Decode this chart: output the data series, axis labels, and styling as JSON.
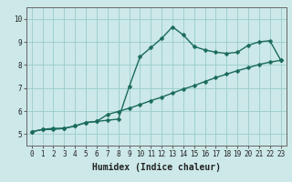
{
  "title": "",
  "xlabel": "Humidex (Indice chaleur)",
  "ylabel": "",
  "bg_color": "#cce8e8",
  "grid_color": "#99cccc",
  "line_color": "#1a6b5a",
  "xlim": [
    -0.5,
    23.5
  ],
  "ylim": [
    4.5,
    10.5
  ],
  "xticks": [
    0,
    1,
    2,
    3,
    4,
    5,
    6,
    7,
    8,
    9,
    10,
    11,
    12,
    13,
    14,
    15,
    16,
    17,
    18,
    19,
    20,
    21,
    22,
    23
  ],
  "yticks": [
    5,
    6,
    7,
    8,
    9,
    10
  ],
  "series1_x": [
    0,
    1,
    2,
    3,
    4,
    5,
    6,
    7,
    8,
    9,
    10,
    11,
    12,
    13,
    14,
    15,
    16,
    17,
    18,
    19,
    20,
    21,
    22,
    23
  ],
  "series1_y": [
    5.1,
    5.2,
    5.2,
    5.25,
    5.35,
    5.5,
    5.55,
    5.6,
    5.65,
    7.05,
    8.35,
    8.75,
    9.15,
    9.65,
    9.3,
    8.8,
    8.65,
    8.55,
    8.5,
    8.55,
    8.85,
    9.0,
    9.05,
    8.2
  ],
  "series2_x": [
    0,
    1,
    2,
    3,
    4,
    5,
    6,
    7,
    8,
    9,
    10,
    11,
    12,
    13,
    14,
    15,
    16,
    17,
    18,
    19,
    20,
    21,
    22,
    23
  ],
  "series2_y": [
    5.1,
    5.2,
    5.25,
    5.25,
    5.35,
    5.5,
    5.55,
    5.85,
    5.98,
    6.12,
    6.28,
    6.45,
    6.6,
    6.78,
    6.95,
    7.1,
    7.28,
    7.45,
    7.6,
    7.75,
    7.88,
    8.02,
    8.12,
    8.2
  ],
  "marker": "D",
  "markersize": 2.5,
  "linewidth": 1.0,
  "tick_fontsize": 5.5,
  "label_fontsize": 7.0
}
